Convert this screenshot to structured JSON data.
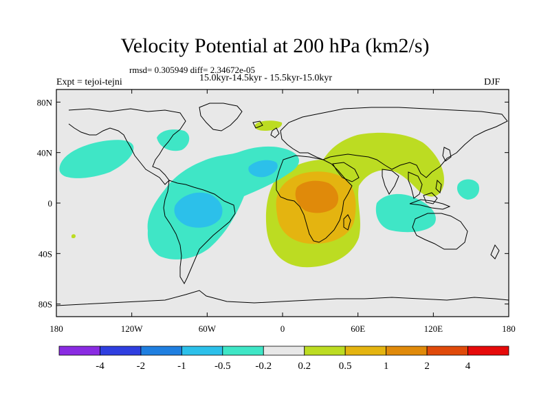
{
  "title": "Velocity Potential at 200 hPa (km2/s)",
  "stats_line": "rmsd= 0.305949 diff= 2.34672e-05",
  "period_line": "15.0kyr-14.5kyr - 15.5kyr-15.0kyr",
  "experiment": "Expt = tejoi-tejni",
  "season": "DJF",
  "map": {
    "projection": "cylindrical equidistant",
    "lon_range": [
      -180,
      180
    ],
    "lat_range": [
      -90,
      90
    ],
    "lon_ticks": [
      {
        "value": -180,
        "label": "180"
      },
      {
        "value": -120,
        "label": "120W"
      },
      {
        "value": -60,
        "label": "60W"
      },
      {
        "value": 0,
        "label": "0"
      },
      {
        "value": 60,
        "label": "60E"
      },
      {
        "value": 120,
        "label": "120E"
      },
      {
        "value": 180,
        "label": "180"
      }
    ],
    "lat_ticks": [
      {
        "value": 80,
        "label": "80N"
      },
      {
        "value": 40,
        "label": "40N"
      },
      {
        "value": 0,
        "label": "0"
      },
      {
        "value": -40,
        "label": "40S"
      },
      {
        "value": -80,
        "label": "80S"
      }
    ],
    "background_color": "#e8e8e8",
    "coastline_color": "#000000"
  },
  "colorbar": {
    "colors": [
      "#8a2be2",
      "#2f3fe0",
      "#1f7fe0",
      "#2cc0ea",
      "#3fe6c6",
      "#e8e8e8",
      "#bcdc22",
      "#e4b410",
      "#e08a0a",
      "#e04a0a",
      "#e60a0a"
    ],
    "labels": [
      "-4",
      "-2",
      "-1",
      "-0.5",
      "-0.2",
      "0.2",
      "0.5",
      "1",
      "2",
      "4"
    ]
  }
}
